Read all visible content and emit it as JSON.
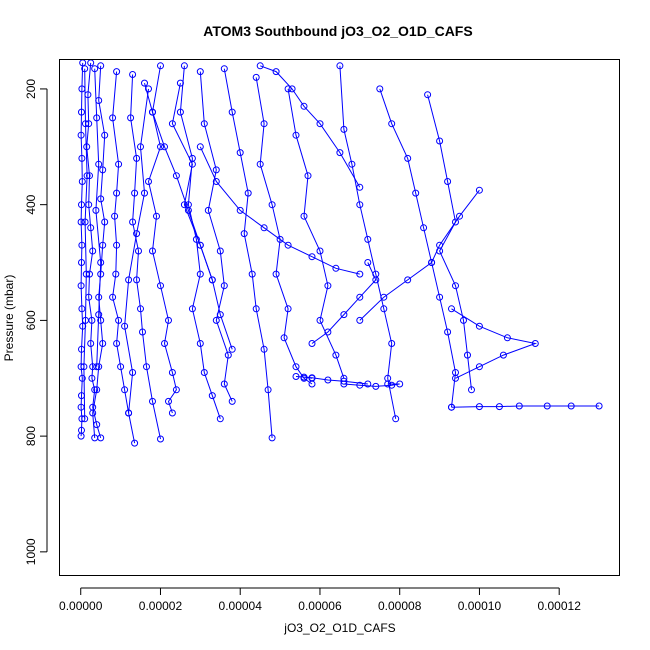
{
  "chart_data": {
    "type": "line",
    "title": "ATOM3 Southbound jO3_O2_O1D_CAFS",
    "xlabel": "jO3_O2_O1D_CAFS",
    "ylabel": "Pressure (mbar)",
    "xlim": [
      -5.2e-06,
      0.000135
    ],
    "ylim": [
      1040,
      150
    ],
    "y_reversed": true,
    "x_ticks": [
      0,
      2e-05,
      4e-05,
      6e-05,
      8e-05,
      0.0001,
      0.00012
    ],
    "x_tick_labels": [
      "0.00000",
      "0.00002",
      "0.00004",
      "0.00006",
      "0.00008",
      "0.00010",
      "0.00012"
    ],
    "y_ticks": [
      200,
      400,
      600,
      800,
      1000
    ],
    "y_tick_labels": [
      "200",
      "400",
      "600",
      "800",
      "1000"
    ],
    "grid": false,
    "color": "#0000ff",
    "series": [
      {
        "x": [
          5e-07,
          3e-07,
          2e-07,
          1e-07,
          3e-07,
          4e-07,
          2e-07,
          1e-07,
          3e-07,
          2e-07,
          1e-07,
          3e-07,
          5e-07,
          2e-07,
          1e-07,
          4e-07,
          2e-07,
          1e-07,
          3e-07,
          2e-07,
          1e-07
        ],
        "y": [
          155,
          200,
          240,
          280,
          320,
          360,
          400,
          430,
          470,
          500,
          540,
          580,
          610,
          650,
          680,
          700,
          730,
          750,
          770,
          790,
          800
        ]
      },
      {
        "x": [
          2.5e-06,
          1.8e-06,
          2e-06,
          1.5e-06,
          2.2e-06,
          2e-06,
          2.5e-06,
          3e-06,
          2.2e-06,
          2e-06,
          2.8e-06,
          2.5e-06,
          3e-06,
          2.8e-06,
          3.5e-06,
          3e-06,
          4e-06,
          5e-06
        ],
        "y": [
          155,
          210,
          260,
          300,
          350,
          400,
          440,
          480,
          520,
          560,
          600,
          640,
          680,
          700,
          720,
          750,
          780,
          803
        ]
      },
      {
        "x": [
          5e-06,
          4.5e-06,
          6e-06,
          5.5e-06,
          5e-06,
          6e-06,
          5.5e-06,
          5e-06,
          4.5e-06,
          5e-06,
          5.5e-06,
          4.5e-06,
          4e-06,
          3e-06,
          3.5e-06
        ],
        "y": [
          160,
          220,
          280,
          340,
          390,
          430,
          470,
          520,
          560,
          600,
          640,
          680,
          720,
          760,
          803
        ]
      },
      {
        "x": [
          9e-06,
          8e-06,
          9.5e-06,
          9e-06,
          8.5e-06,
          9e-06,
          8.8e-06,
          8e-06,
          9.5e-06,
          9e-06,
          1e-05,
          1.1e-05,
          1.2e-05,
          1.35e-05
        ],
        "y": [
          170,
          250,
          330,
          380,
          420,
          470,
          520,
          560,
          600,
          640,
          680,
          720,
          760,
          812
        ]
      },
      {
        "x": [
          1.3e-05,
          1.25e-05,
          1.4e-05,
          1.35e-05,
          1.3e-05,
          1.45e-05,
          1.4e-05,
          1.5e-05,
          1.55e-05,
          1.65e-05,
          1.8e-05,
          2e-05
        ],
        "y": [
          175,
          250,
          320,
          380,
          430,
          480,
          530,
          580,
          620,
          680,
          740,
          805
        ]
      },
      {
        "x": [
          2e-05,
          1.8e-05,
          2e-05,
          1.7e-05,
          1.9e-05,
          1.8e-05,
          2e-05,
          2.2e-05,
          2.1e-05,
          2.3e-05,
          2.4e-05,
          2.2e-05,
          2.3e-05
        ],
        "y": [
          160,
          240,
          300,
          360,
          420,
          480,
          540,
          600,
          640,
          690,
          720,
          740,
          760
        ]
      },
      {
        "x": [
          2.6e-05,
          2.5e-05,
          2.8e-05,
          2.7e-05,
          2.9e-05,
          3e-05,
          2.8e-05,
          3e-05,
          3.1e-05,
          3.3e-05,
          3.5e-05
        ],
        "y": [
          160,
          240,
          320,
          400,
          460,
          520,
          580,
          640,
          690,
          730,
          770
        ]
      },
      {
        "x": [
          3e-05,
          3.1e-05,
          3.4e-05,
          3.2e-05,
          3.5e-05,
          3.6e-05,
          3.4e-05,
          3.7e-05,
          3.6e-05,
          3.8e-05
        ],
        "y": [
          170,
          260,
          340,
          410,
          480,
          540,
          600,
          660,
          710,
          740
        ]
      },
      {
        "x": [
          3.6e-05,
          3.8e-05,
          4e-05,
          4.2e-05,
          4.1e-05,
          4.3e-05,
          4.4e-05,
          4.6e-05,
          4.7e-05,
          4.8e-05
        ],
        "y": [
          165,
          240,
          310,
          380,
          450,
          520,
          580,
          650,
          720,
          803
        ]
      },
      {
        "x": [
          4.4e-05,
          4.6e-05,
          4.5e-05,
          4.8e-05,
          5e-05,
          4.9e-05,
          5.2e-05,
          5.1e-05,
          5.4e-05,
          5.6e-05,
          5.8e-05
        ],
        "y": [
          180,
          260,
          330,
          400,
          460,
          520,
          580,
          630,
          680,
          700,
          710
        ]
      },
      {
        "x": [
          5.2e-05,
          5.4e-05,
          5.7e-05,
          5.6e-05,
          6e-05,
          6.2e-05,
          6e-05,
          6.4e-05,
          6.6e-05
        ],
        "y": [
          200,
          280,
          350,
          420,
          480,
          540,
          600,
          660,
          700
        ]
      },
      {
        "x": [
          6.5e-05,
          6.6e-05,
          6.8e-05,
          7e-05,
          7.2e-05,
          7.4e-05,
          7.6e-05,
          7.8e-05,
          7.7e-05,
          7.9e-05
        ],
        "y": [
          160,
          270,
          330,
          400,
          460,
          520,
          580,
          640,
          700,
          770
        ]
      },
      {
        "x": [
          7.5e-05,
          7.8e-05,
          8.2e-05,
          8.4e-05,
          8.6e-05,
          8.8e-05,
          9e-05,
          9.2e-05,
          9.4e-05,
          9.3e-05
        ],
        "y": [
          200,
          260,
          320,
          380,
          440,
          500,
          560,
          620,
          690,
          750
        ]
      },
      {
        "x": [
          8.7e-05,
          9e-05,
          9.2e-05,
          9.4e-05,
          9e-05,
          9.4e-05,
          9.6e-05,
          9.7e-05,
          9.8e-05
        ],
        "y": [
          210,
          290,
          360,
          430,
          480,
          540,
          600,
          660,
          720
        ]
      },
      {
        "x": [
          0.0001,
          9.5e-05,
          9e-05,
          8.8e-05,
          8.2e-05,
          7.6e-05,
          7e-05
        ],
        "y": [
          375,
          420,
          470,
          500,
          530,
          560,
          600
        ]
      },
      {
        "x": [
          9.3e-05,
          0.0001,
          0.000107,
          0.000114,
          0.000106,
          0.0001,
          9.4e-05
        ],
        "y": [
          580,
          610,
          630,
          640,
          660,
          680,
          700
        ]
      },
      {
        "x": [
          9.3e-05,
          0.0001,
          0.000105,
          0.00011,
          0.000117,
          0.000123,
          0.00013
        ],
        "y": [
          750,
          749,
          749,
          748,
          748,
          748,
          748
        ]
      },
      {
        "x": [
          6.6e-05,
          7e-05,
          7.4e-05,
          7.8e-05,
          8e-05,
          7.7e-05
        ],
        "y": [
          710,
          712,
          714,
          712,
          710,
          710
        ]
      },
      {
        "x": [
          5.8e-05,
          5.6e-05,
          5.4e-05,
          5.8e-05,
          6.2e-05,
          6.6e-05,
          7.2e-05
        ],
        "y": [
          700,
          698,
          697,
          699,
          703,
          705,
          710
        ]
      },
      {
        "x": [
          3e-05,
          3.4e-05,
          4e-05,
          4.6e-05,
          5.2e-05,
          5.8e-05,
          6.4e-05,
          7e-05
        ],
        "y": [
          300,
          360,
          410,
          440,
          470,
          490,
          510,
          520
        ]
      },
      {
        "x": [
          4.5e-05,
          4.9e-05,
          5.3e-05,
          5.6e-05,
          6e-05,
          6.5e-05,
          7e-05
        ],
        "y": [
          160,
          170,
          200,
          230,
          260,
          310,
          370
        ]
      },
      {
        "x": [
          2.5e-05,
          2.3e-05,
          2.8e-05,
          2.6e-05,
          3e-05,
          3.3e-05,
          3.5e-05,
          3.8e-05
        ],
        "y": [
          190,
          260,
          330,
          400,
          470,
          530,
          590,
          650
        ]
      },
      {
        "x": [
          1e-06,
          1.2e-06,
          1.6e-06,
          1.1e-06,
          1.4e-06,
          1.2e-06,
          8e-07,
          1e-06
        ],
        "y": [
          165,
          260,
          350,
          430,
          520,
          600,
          680,
          770
        ]
      },
      {
        "x": [
          1.6e-05,
          1.8e-05,
          2.1e-05,
          2.4e-05,
          2.7e-05,
          3e-05,
          3.3e-05
        ],
        "y": [
          190,
          240,
          300,
          350,
          410,
          470,
          530
        ]
      },
      {
        "x": [
          5.8e-05,
          6.2e-05,
          6.6e-05,
          7e-05,
          7.4e-05,
          7.2e-05
        ],
        "y": [
          640,
          620,
          590,
          560,
          530,
          500
        ]
      },
      {
        "x": [
          3.5e-06,
          4e-06,
          4.5e-06,
          3.8e-06,
          5e-06,
          4.5e-06,
          4e-06
        ],
        "y": [
          165,
          250,
          330,
          410,
          500,
          590,
          680
        ]
      },
      {
        "x": [
          1.7e-05,
          1.5e-05,
          1.6e-05,
          1.4e-05,
          1.2e-05,
          1.1e-05,
          1.3e-05,
          1.2e-05
        ],
        "y": [
          200,
          300,
          380,
          450,
          530,
          610,
          690,
          760
        ]
      }
    ]
  }
}
